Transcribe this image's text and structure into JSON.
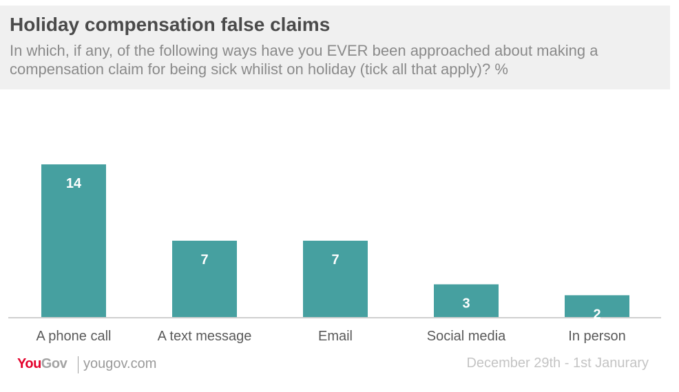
{
  "header": {
    "title": "Holiday compensation false claims",
    "subtitle": "In which, if any, of the following ways have you EVER been approached about making a compensation claim for being sick whilist on holiday (tick all that apply)? %"
  },
  "chart_data": {
    "type": "bar",
    "title": "Holiday compensation false claims",
    "categories": [
      "A phone call",
      "A text message",
      "Email",
      "Social media",
      "In person"
    ],
    "values": [
      14,
      7,
      7,
      3,
      2
    ],
    "xlabel": "",
    "ylabel": "",
    "ylim": [
      0,
      16
    ],
    "grid": false,
    "legend": "none",
    "bar_color": "#46a0a0",
    "value_label_color": "#ffffff",
    "category_label_color": "#595959",
    "axis_color": "#cfcfcf"
  },
  "footer": {
    "logo_you": "You",
    "logo_gov": "Gov",
    "website": "yougov.com",
    "date_range": "December 29th - 1st Janurary"
  }
}
